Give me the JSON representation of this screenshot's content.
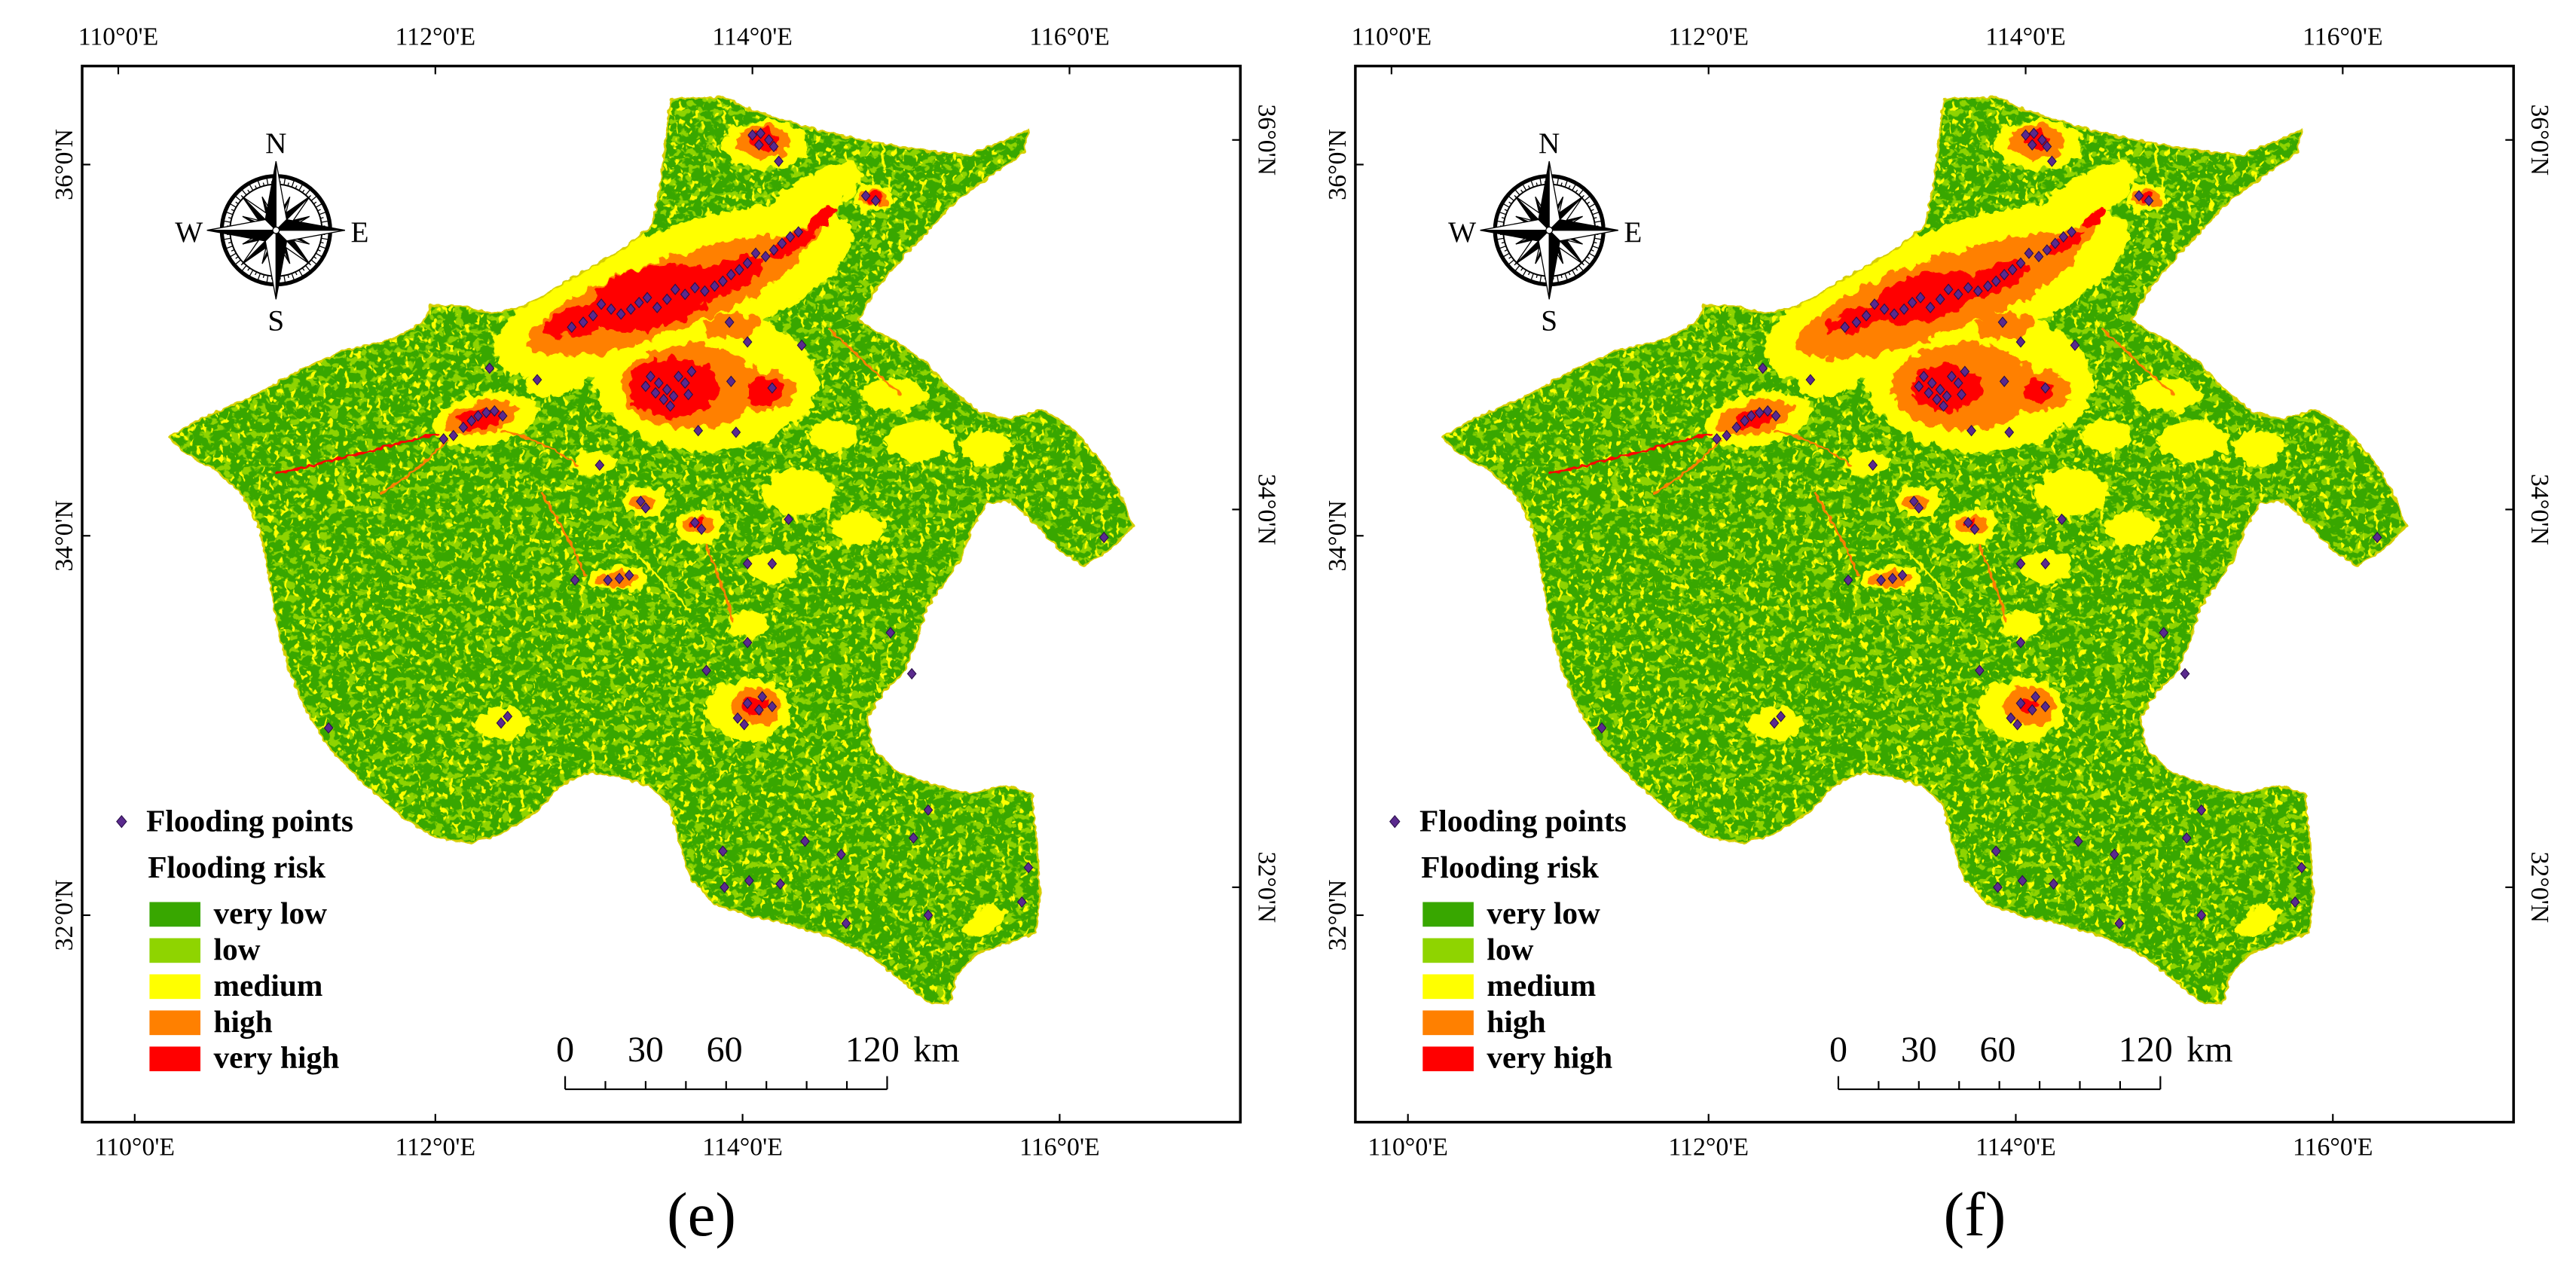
{
  "figure": {
    "panels": [
      {
        "caption": "(e)"
      },
      {
        "caption": "(f)"
      }
    ],
    "longitude_labels": [
      "110°0'E",
      "112°0'E",
      "114°0'E",
      "116°0'E"
    ],
    "latitude_labels": [
      "36°0'N",
      "34°0'N",
      "32°0'N"
    ],
    "compass": {
      "icon": "compass-rose-icon",
      "north": "N",
      "east": "E",
      "south": "S",
      "west": "W"
    },
    "legend": {
      "points_label": "Flooding points",
      "point_icon": "diamond-marker-icon",
      "point_color": "#5a2a8e",
      "risk_title": "Flooding risk",
      "classes": [
        {
          "label": "very low",
          "color": "#38a700"
        },
        {
          "label": "low",
          "color": "#8fd400"
        },
        {
          "label": "medium",
          "color": "#ffff00"
        },
        {
          "label": "high",
          "color": "#ff8000"
        },
        {
          "label": "very high",
          "color": "#ff0000"
        }
      ]
    },
    "scale_bar": {
      "labels": [
        "0",
        "30",
        "60",
        "120"
      ],
      "unit": "km"
    }
  }
}
